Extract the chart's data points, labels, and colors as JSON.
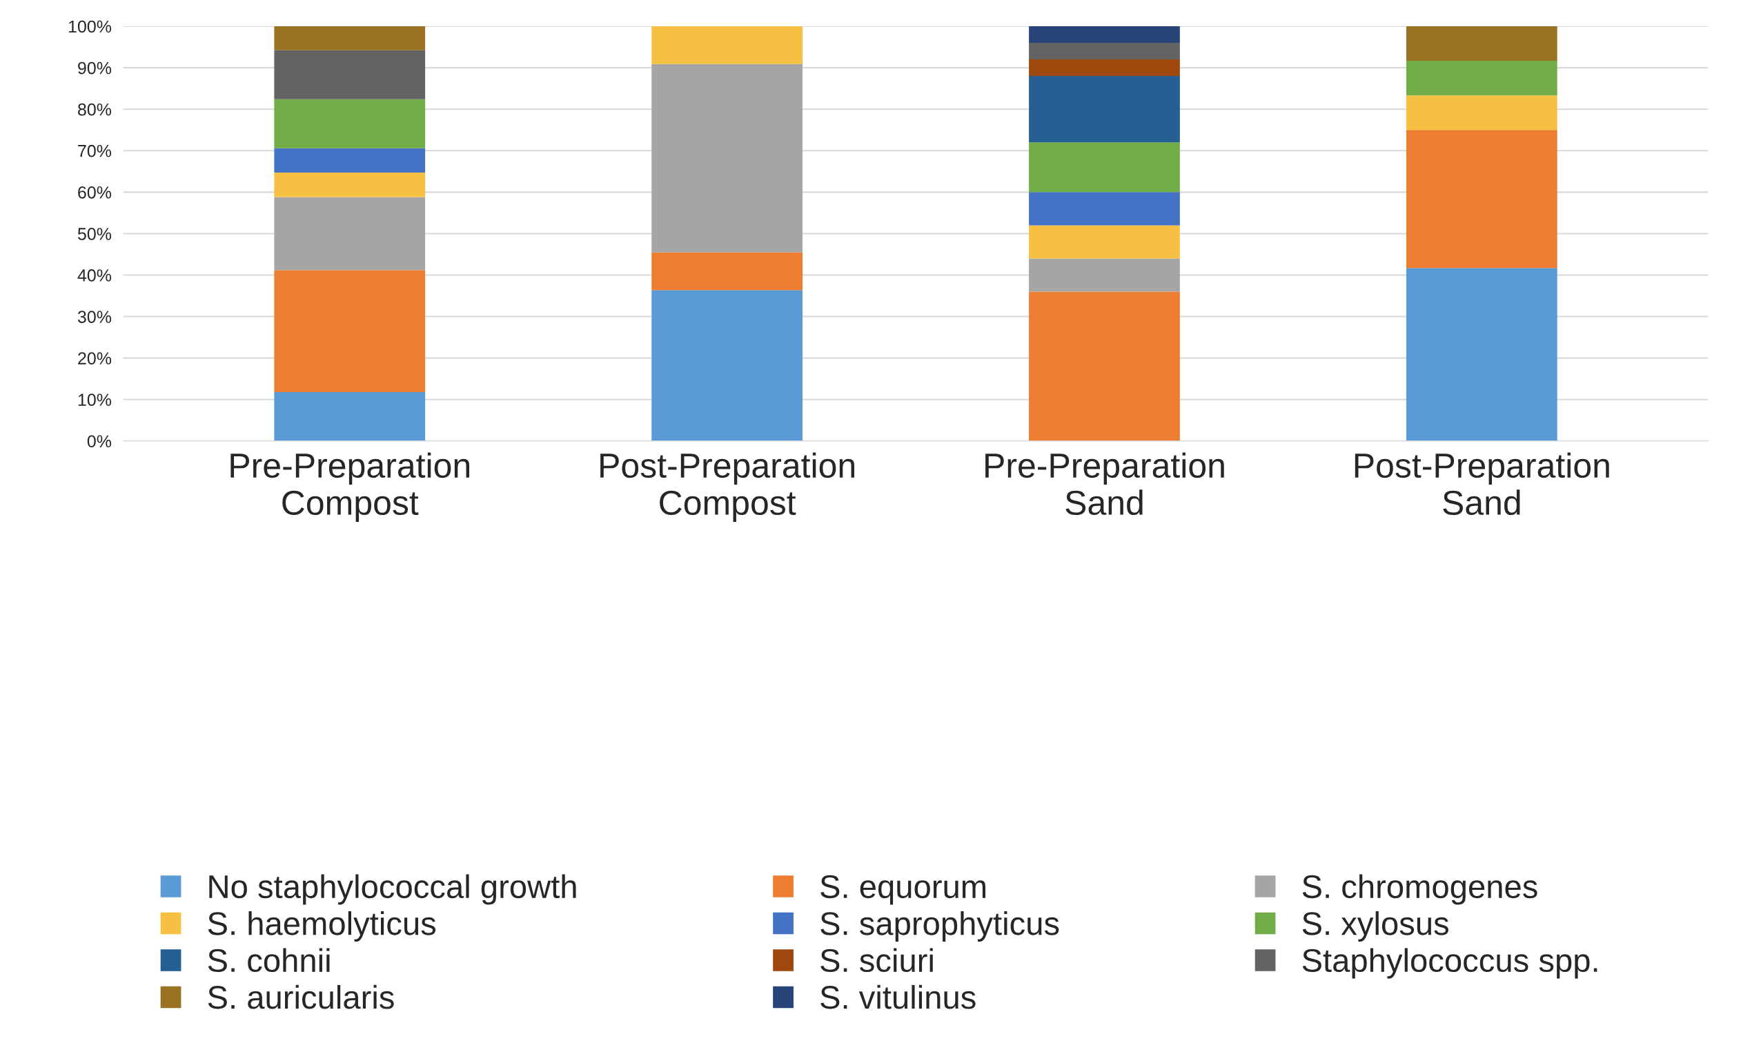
{
  "chart_data": {
    "type": "bar",
    "stacked": true,
    "categories": [
      "Pre-Preparation\nCompost",
      "Post-Preparation\nCompost",
      "Pre-Preparation\nSand",
      "Post-Preparation\nSand"
    ],
    "series": [
      {
        "name": "No staphylococcal growth",
        "color": "#5b9bd5",
        "values": [
          11.8,
          36.4,
          0,
          41.7
        ]
      },
      {
        "name": "S. equorum",
        "color": "#ed7d31",
        "values": [
          29.4,
          9.1,
          36,
          33.3
        ]
      },
      {
        "name": "S. chromogenes",
        "color": "#a5a5a5",
        "values": [
          17.6,
          45.4,
          8,
          0
        ]
      },
      {
        "name": "S. haemolyticus",
        "color": "#f6c142",
        "values": [
          5.9,
          9.1,
          8,
          8.3
        ]
      },
      {
        "name": "S. saprophyticus",
        "color": "#4472c4",
        "values": [
          5.9,
          0,
          8,
          0
        ]
      },
      {
        "name": "S. xylosus",
        "color": "#70ad47",
        "values": [
          11.8,
          0,
          12,
          8.4
        ]
      },
      {
        "name": "S. cohnii",
        "color": "#255e91",
        "values": [
          0,
          0,
          16,
          0
        ]
      },
      {
        "name": "S. sciuri",
        "color": "#9e480e",
        "values": [
          0,
          0,
          4,
          0
        ]
      },
      {
        "name": "Staphylococcus spp.",
        "color": "#636363",
        "values": [
          11.8,
          0,
          4,
          0
        ]
      },
      {
        "name": "S. auricularis",
        "color": "#997321",
        "values": [
          5.8,
          0,
          0,
          8.3
        ]
      },
      {
        "name": "S. vitulinus",
        "color": "#264478",
        "values": [
          0,
          0,
          4,
          0
        ]
      }
    ],
    "ylim": [
      0,
      100
    ],
    "yticks": [
      {
        "value": 0,
        "label": "0%"
      },
      {
        "value": 10,
        "label": "10%"
      },
      {
        "value": 20,
        "label": "20%"
      },
      {
        "value": 30,
        "label": "30%"
      },
      {
        "value": 40,
        "label": "40%"
      },
      {
        "value": 50,
        "label": "50%"
      },
      {
        "value": 60,
        "label": "60%"
      },
      {
        "value": 70,
        "label": "70%"
      },
      {
        "value": 80,
        "label": "80%"
      },
      {
        "value": 90,
        "label": "90%"
      },
      {
        "value": 100,
        "label": "100%"
      }
    ],
    "grid": "y",
    "legend": "bottom"
  }
}
